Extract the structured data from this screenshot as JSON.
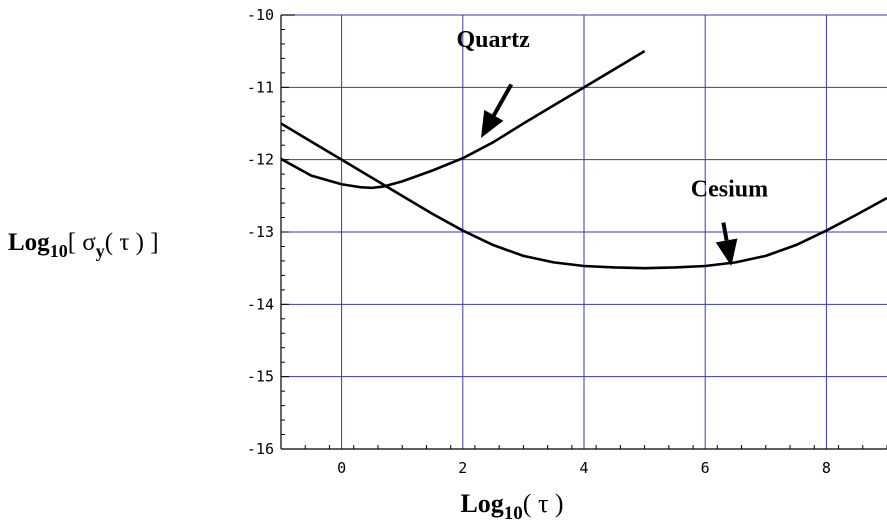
{
  "chart_data": {
    "type": "line",
    "xlim": [
      -1,
      9
    ],
    "ylim": [
      -16,
      -10
    ],
    "x_ticks": [
      0,
      2,
      4,
      6,
      8
    ],
    "y_ticks": [
      -10,
      -11,
      -12,
      -13,
      -14,
      -15,
      -16
    ],
    "x_tick_labels": [
      "0",
      "2",
      "4",
      "6",
      "8"
    ],
    "y_tick_labels": [
      "-10",
      "-11",
      "-12",
      "-13",
      "-14",
      "-15",
      "-16"
    ],
    "grid": true,
    "grid_color": "#3a3aa6",
    "line_color": "#000000",
    "xlabel": {
      "pre": "Log",
      "sub": "10",
      "post": "( τ )"
    },
    "ylabel": {
      "pre": "Log",
      "sub": "10",
      "mid": "[ σ",
      "sub2": "y",
      "post": "( τ ) ]"
    },
    "series": [
      {
        "name": "Quartz",
        "x": [
          -1,
          -0.5,
          0,
          0.3,
          0.5,
          0.7,
          1,
          1.5,
          2,
          2.5,
          3,
          3.5,
          4,
          4.5,
          5
        ],
        "y": [
          -11.99,
          -12.22,
          -12.34,
          -12.38,
          -12.39,
          -12.37,
          -12.3,
          -12.15,
          -11.98,
          -11.76,
          -11.5,
          -11.25,
          -11.0,
          -10.75,
          -10.5
        ]
      },
      {
        "name": "Cesium",
        "x": [
          -1,
          -0.5,
          0,
          0.5,
          1,
          1.5,
          2,
          2.5,
          3,
          3.5,
          4,
          4.5,
          5,
          5.5,
          6,
          6.5,
          7,
          7.5,
          8,
          8.5,
          9
        ],
        "y": [
          -11.5,
          -11.75,
          -12.0,
          -12.25,
          -12.5,
          -12.75,
          -12.98,
          -13.18,
          -13.33,
          -13.42,
          -13.47,
          -13.49,
          -13.5,
          -13.49,
          -13.47,
          -13.42,
          -13.33,
          -13.18,
          -12.98,
          -12.76,
          -12.53
        ]
      }
    ],
    "annotations": [
      {
        "text": "Quartz",
        "text_x": 2.5,
        "text_y": -10.44,
        "arrow_from": [
          2.8,
          -10.96
        ],
        "arrow_to": [
          2.3,
          -11.7
        ]
      },
      {
        "text": "Cesium",
        "text_x": 6.4,
        "text_y": -12.51,
        "arrow_from": [
          6.3,
          -12.87
        ],
        "arrow_to": [
          6.43,
          -13.47
        ]
      }
    ]
  }
}
